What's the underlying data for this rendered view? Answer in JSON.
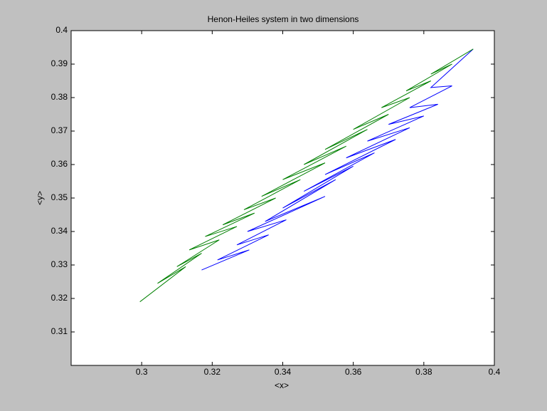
{
  "chart_data": {
    "type": "line",
    "title": "Henon-Heiles system in two dimensions",
    "x_label": "<x>",
    "y_label": "<y>",
    "xlim": [
      0.28,
      0.4
    ],
    "ylim": [
      0.3,
      0.4
    ],
    "xticks": [
      0.3,
      0.32,
      0.34,
      0.36,
      0.38,
      0.4
    ],
    "yticks": [
      0.31,
      0.32,
      0.33,
      0.34,
      0.35,
      0.36,
      0.37,
      0.38,
      0.39,
      0.4
    ],
    "series": [
      {
        "color": "#0000ff",
        "x": [
          0.317,
          0.3305,
          0.3215,
          0.336,
          0.327,
          0.341,
          0.33,
          0.352,
          0.335,
          0.355,
          0.34,
          0.36,
          0.346,
          0.366,
          0.352,
          0.372,
          0.358,
          0.376,
          0.364,
          0.38,
          0.37,
          0.384,
          0.376,
          0.388,
          0.382,
          0.394
        ],
        "values": [
          0.3285,
          0.3345,
          0.3315,
          0.339,
          0.336,
          0.3435,
          0.34,
          0.3505,
          0.343,
          0.3555,
          0.347,
          0.3595,
          0.352,
          0.3635,
          0.357,
          0.3675,
          0.362,
          0.371,
          0.367,
          0.3745,
          0.372,
          0.378,
          0.377,
          0.3835,
          0.383,
          0.3945
        ]
      },
      {
        "color": "#008000",
        "x": [
          0.2995,
          0.3125,
          0.3045,
          0.317,
          0.31,
          0.322,
          0.3135,
          0.327,
          0.318,
          0.332,
          0.323,
          0.338,
          0.329,
          0.345,
          0.334,
          0.352,
          0.34,
          0.358,
          0.346,
          0.364,
          0.352,
          0.37,
          0.36,
          0.376,
          0.368,
          0.382,
          0.375,
          0.388,
          0.382,
          0.394
        ],
        "values": [
          0.319,
          0.3295,
          0.3245,
          0.3335,
          0.3295,
          0.3375,
          0.3345,
          0.3415,
          0.3385,
          0.3455,
          0.342,
          0.35,
          0.3465,
          0.3555,
          0.3505,
          0.3605,
          0.3555,
          0.3655,
          0.36,
          0.3705,
          0.3645,
          0.375,
          0.3705,
          0.38,
          0.377,
          0.385,
          0.382,
          0.39,
          0.387,
          0.3945
        ]
      }
    ]
  }
}
